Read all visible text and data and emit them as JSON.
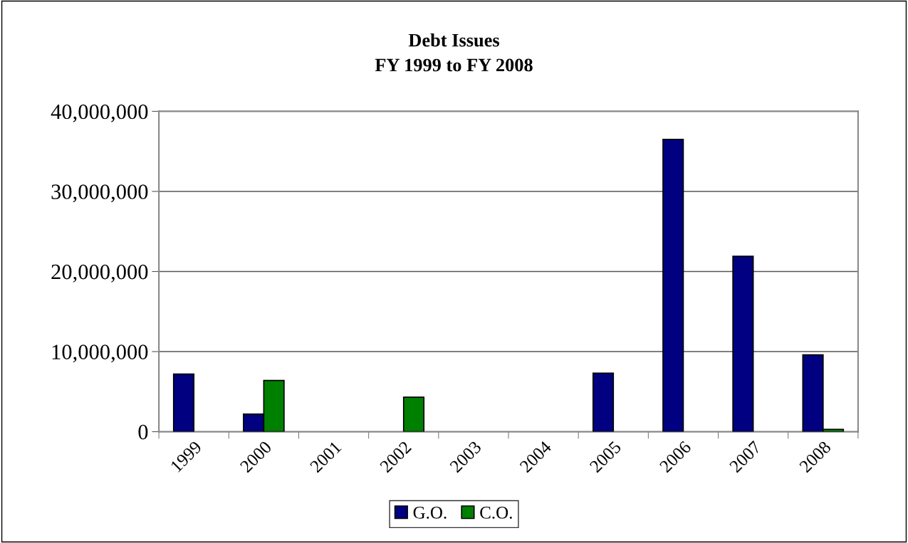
{
  "chart_data": {
    "type": "bar",
    "title": "Debt Issues\nFY 1999 to FY 2008",
    "categories": [
      "1999",
      "2000",
      "2001",
      "2002",
      "2003",
      "2004",
      "2005",
      "2006",
      "2007",
      "2008"
    ],
    "series": [
      {
        "name": "G.O.",
        "color": "#000080",
        "values": [
          7200000,
          2200000,
          null,
          null,
          null,
          null,
          7300000,
          36500000,
          21900000,
          9600000
        ]
      },
      {
        "name": "C.O.",
        "color": "#008000",
        "values": [
          null,
          6400000,
          null,
          4300000,
          null,
          null,
          null,
          null,
          null,
          300000
        ]
      }
    ],
    "ylim": [
      0,
      40000000
    ],
    "yticks": [
      {
        "value": 0,
        "label": "0"
      },
      {
        "value": 10000000,
        "label": "10,000,000"
      },
      {
        "value": 20000000,
        "label": "20,000,000"
      },
      {
        "value": 30000000,
        "label": "30,000,000"
      },
      {
        "value": 40000000,
        "label": "40,000,000"
      }
    ],
    "grid": "y",
    "legend": "bottom"
  }
}
